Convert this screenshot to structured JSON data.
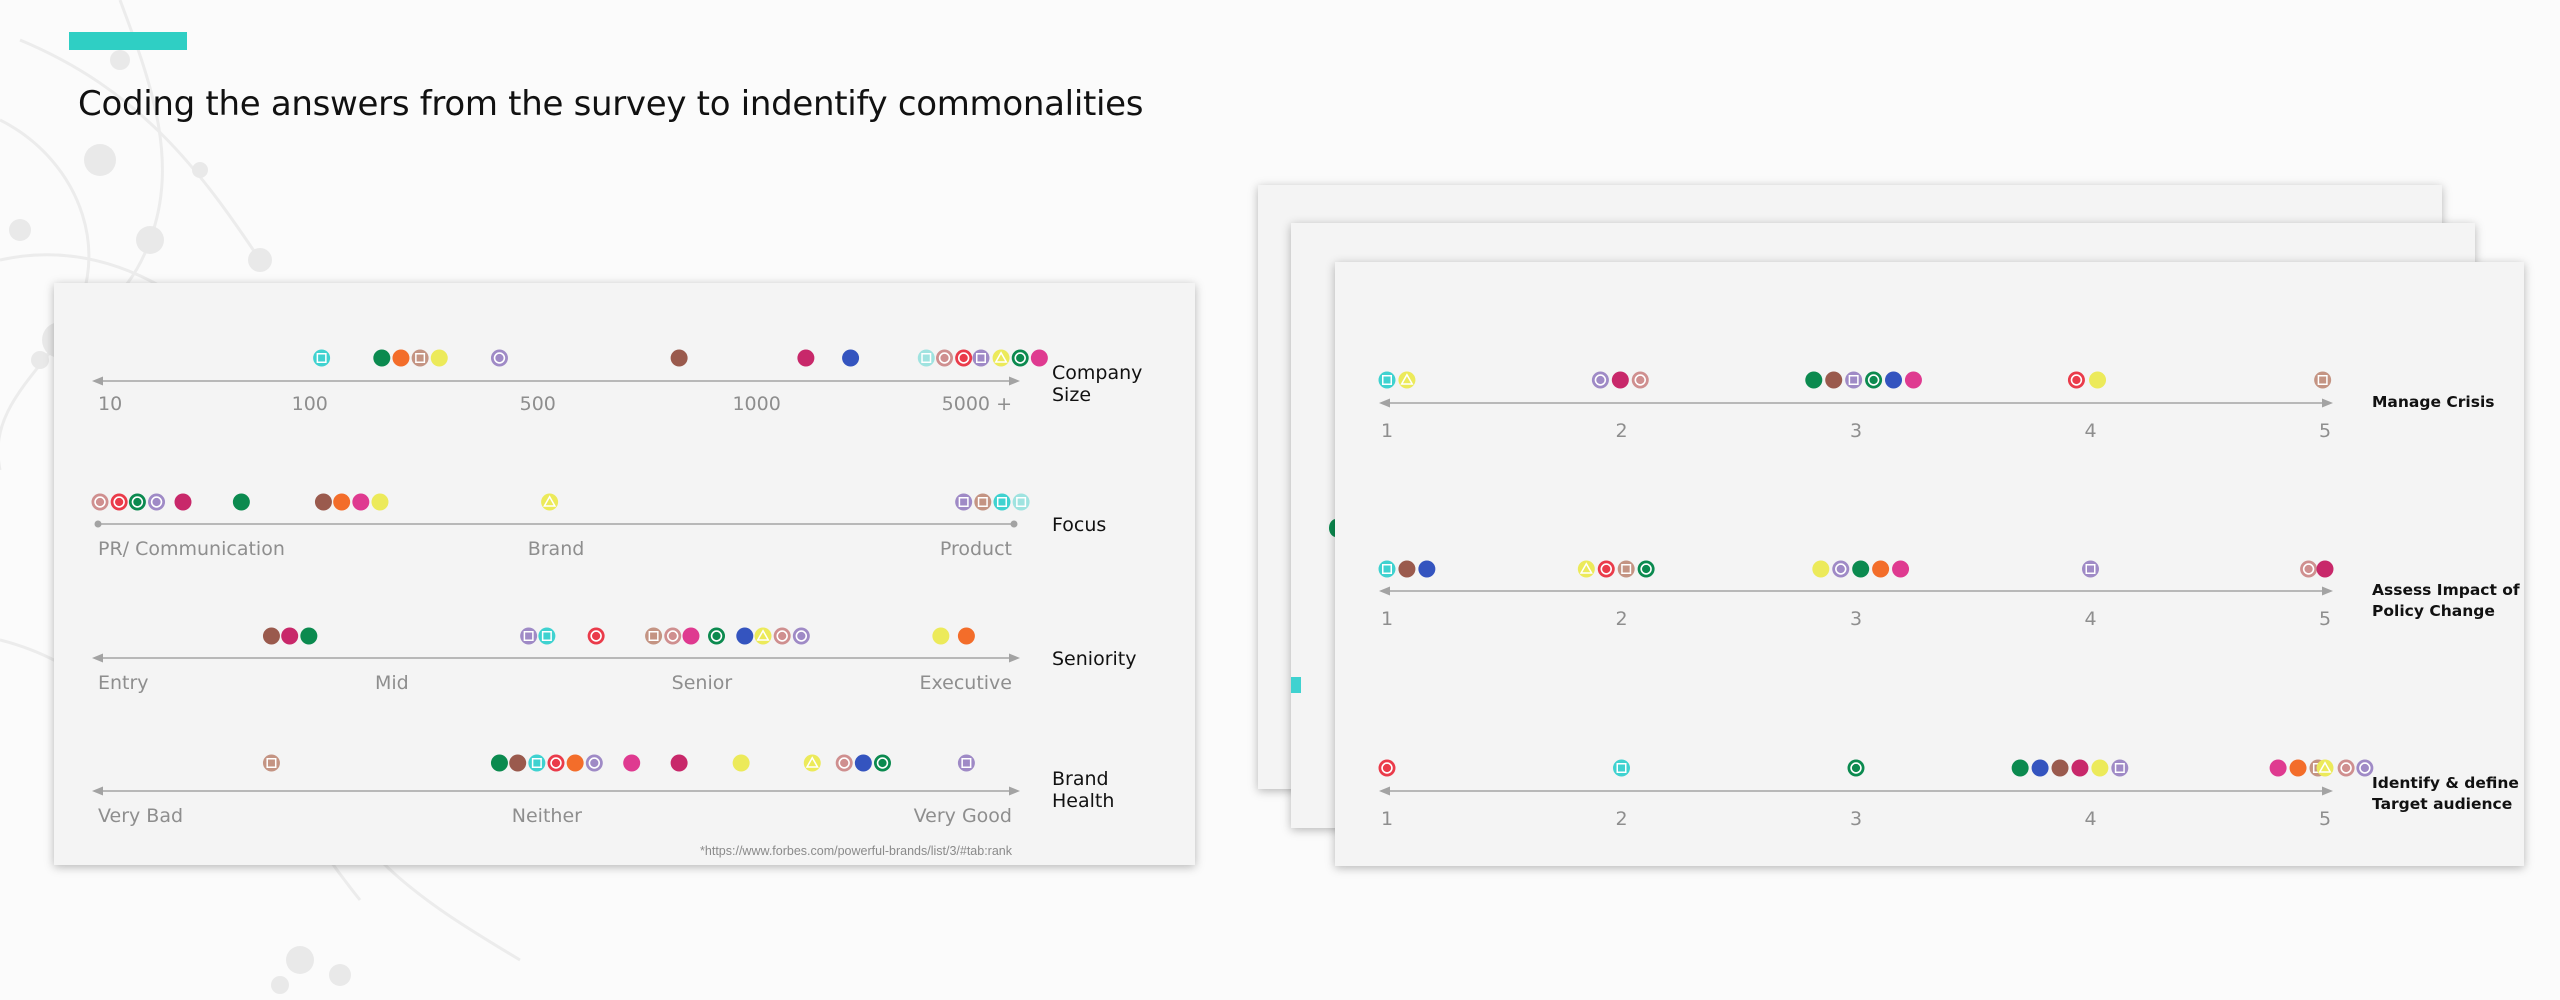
{
  "page": {
    "title": "Coding the answers from the survey to indentify commonalities"
  },
  "colors": {
    "accent": "#2fcfc4",
    "axis": "#a3a3a3",
    "tick_text": "#8e8e8e",
    "marker_palette": {
      "cyan": "#3fd2d0",
      "green": "#0b8a4f",
      "orange": "#f36d2a",
      "tan": "#c49483",
      "yellow": "#ecea5a",
      "lilac": "#9f8ac6",
      "brown": "#9a5a4d",
      "crimson": "#c8286a",
      "blue": "#3454bf",
      "salmon": "#cf8f8f",
      "red": "#ea3b4a",
      "pink": "#df3a90",
      "lightcyan": "#9fe3e0"
    }
  },
  "chart_data": [
    {
      "type": "scatter",
      "title": "",
      "source_note": "*https://www.forbes.com/powerful-brands/list/3/#tab:rank",
      "rows": [
        {
          "label": [
            "Company",
            "Size"
          ],
          "axis": "arrows",
          "xlim": [
            0,
            100
          ],
          "ticks": [
            {
              "x": 0,
              "label": "10"
            },
            {
              "x": 23,
              "label": "100"
            },
            {
              "x": 48,
              "label": "500"
            },
            {
              "x": 72,
              "label": "1000"
            },
            {
              "x": 96,
              "label": "5000 +"
            }
          ],
          "points": [
            {
              "x": 24.3,
              "color": "cyan",
              "shape": "square"
            },
            {
              "x": 30.9,
              "color": "green",
              "shape": "dot"
            },
            {
              "x": 33.0,
              "color": "orange",
              "shape": "dot"
            },
            {
              "x": 35.1,
              "color": "tan",
              "shape": "square"
            },
            {
              "x": 37.2,
              "color": "yellow",
              "shape": "dot"
            },
            {
              "x": 43.8,
              "color": "lilac",
              "shape": "ring"
            },
            {
              "x": 63.5,
              "color": "brown",
              "shape": "dot"
            },
            {
              "x": 77.4,
              "color": "crimson",
              "shape": "dot"
            },
            {
              "x": 82.3,
              "color": "blue",
              "shape": "dot"
            },
            {
              "x": 90.6,
              "color": "lightcyan",
              "shape": "square"
            },
            {
              "x": 92.6,
              "color": "salmon",
              "shape": "ring"
            },
            {
              "x": 94.7,
              "color": "red",
              "shape": "ring"
            },
            {
              "x": 96.6,
              "color": "lilac",
              "shape": "square"
            },
            {
              "x": 98.8,
              "color": "yellow",
              "shape": "triangle"
            },
            {
              "x": 100.9,
              "color": "green",
              "shape": "ring"
            },
            {
              "x": 103.0,
              "color": "pink",
              "shape": "dot"
            }
          ]
        },
        {
          "label": [
            "Focus"
          ],
          "axis": "dots",
          "xlim": [
            0,
            100
          ],
          "ticks": [
            {
              "x": 0,
              "label": "PR/ Communication"
            },
            {
              "x": 50,
              "label": "Brand"
            },
            {
              "x": 96,
              "label": "Product"
            }
          ],
          "points": [
            {
              "x": 0,
              "color": "salmon",
              "shape": "ring"
            },
            {
              "x": 2.1,
              "color": "red",
              "shape": "ring"
            },
            {
              "x": 4.1,
              "color": "green",
              "shape": "ring"
            },
            {
              "x": 6.2,
              "color": "lilac",
              "shape": "ring"
            },
            {
              "x": 9.1,
              "color": "crimson",
              "shape": "dot"
            },
            {
              "x": 15.5,
              "color": "green",
              "shape": "dot"
            },
            {
              "x": 24.5,
              "color": "brown",
              "shape": "dot"
            },
            {
              "x": 26.5,
              "color": "orange",
              "shape": "dot"
            },
            {
              "x": 28.6,
              "color": "pink",
              "shape": "dot"
            },
            {
              "x": 30.7,
              "color": "yellow",
              "shape": "dot"
            },
            {
              "x": 49.3,
              "color": "yellow",
              "shape": "triangle"
            },
            {
              "x": 94.7,
              "color": "lilac",
              "shape": "square"
            },
            {
              "x": 96.8,
              "color": "tan",
              "shape": "square"
            },
            {
              "x": 98.9,
              "color": "cyan",
              "shape": "square"
            },
            {
              "x": 101.0,
              "color": "lightcyan",
              "shape": "square"
            }
          ]
        },
        {
          "label": [
            "Seniority"
          ],
          "axis": "arrows",
          "xlim": [
            0,
            100
          ],
          "ticks": [
            {
              "x": 0,
              "label": "Entry"
            },
            {
              "x": 32,
              "label": "Mid"
            },
            {
              "x": 66,
              "label": "Senior"
            },
            {
              "x": 96,
              "label": "Executive"
            }
          ],
          "points": [
            {
              "x": 18.8,
              "color": "brown",
              "shape": "dot"
            },
            {
              "x": 20.8,
              "color": "crimson",
              "shape": "dot"
            },
            {
              "x": 22.9,
              "color": "green",
              "shape": "dot"
            },
            {
              "x": 47.0,
              "color": "lilac",
              "shape": "square"
            },
            {
              "x": 49.0,
              "color": "cyan",
              "shape": "square"
            },
            {
              "x": 54.4,
              "color": "red",
              "shape": "ring"
            },
            {
              "x": 60.7,
              "color": "tan",
              "shape": "square"
            },
            {
              "x": 62.8,
              "color": "salmon",
              "shape": "ring"
            },
            {
              "x": 64.8,
              "color": "pink",
              "shape": "dot"
            },
            {
              "x": 67.6,
              "color": "green",
              "shape": "ring"
            },
            {
              "x": 70.7,
              "color": "blue",
              "shape": "dot"
            },
            {
              "x": 72.7,
              "color": "yellow",
              "shape": "triangle"
            },
            {
              "x": 74.8,
              "color": "salmon",
              "shape": "ring"
            },
            {
              "x": 76.9,
              "color": "lilac",
              "shape": "ring"
            },
            {
              "x": 92.2,
              "color": "yellow",
              "shape": "dot"
            },
            {
              "x": 95.0,
              "color": "orange",
              "shape": "dot"
            }
          ]
        },
        {
          "label": [
            "Brand",
            "Health"
          ],
          "axis": "arrows",
          "xlim": [
            0,
            100
          ],
          "ticks": [
            {
              "x": 0,
              "label": "Very Bad"
            },
            {
              "x": 49,
              "label": "Neither"
            },
            {
              "x": 96,
              "label": "Very Good"
            }
          ],
          "points": [
            {
              "x": 18.8,
              "color": "tan",
              "shape": "square"
            },
            {
              "x": 43.8,
              "color": "green",
              "shape": "dot"
            },
            {
              "x": 45.8,
              "color": "brown",
              "shape": "dot"
            },
            {
              "x": 47.9,
              "color": "cyan",
              "shape": "square"
            },
            {
              "x": 50.0,
              "color": "red",
              "shape": "ring"
            },
            {
              "x": 52.1,
              "color": "orange",
              "shape": "dot"
            },
            {
              "x": 54.2,
              "color": "lilac",
              "shape": "ring"
            },
            {
              "x": 58.3,
              "color": "pink",
              "shape": "dot"
            },
            {
              "x": 63.5,
              "color": "crimson",
              "shape": "dot"
            },
            {
              "x": 70.3,
              "color": "yellow",
              "shape": "dot"
            },
            {
              "x": 78.1,
              "color": "yellow",
              "shape": "triangle"
            },
            {
              "x": 81.6,
              "color": "salmon",
              "shape": "ring"
            },
            {
              "x": 83.7,
              "color": "blue",
              "shape": "dot"
            },
            {
              "x": 85.8,
              "color": "green",
              "shape": "ring"
            },
            {
              "x": 95.0,
              "color": "lilac",
              "shape": "square"
            }
          ]
        }
      ]
    },
    {
      "type": "scatter",
      "title": "",
      "rows": [
        {
          "label": [
            "Manage Crisis"
          ],
          "axis": "arrows",
          "xlim": [
            1,
            5
          ],
          "ticks": [
            {
              "x": 1,
              "label": "1"
            },
            {
              "x": 2,
              "label": "2"
            },
            {
              "x": 3,
              "label": "3"
            },
            {
              "x": 4,
              "label": "4"
            },
            {
              "x": 5,
              "label": "5"
            }
          ],
          "points": [
            {
              "x": 1.0,
              "color": "cyan",
              "shape": "square"
            },
            {
              "x": 1.085,
              "color": "yellow",
              "shape": "triangle"
            },
            {
              "x": 1.91,
              "color": "lilac",
              "shape": "ring"
            },
            {
              "x": 1.995,
              "color": "crimson",
              "shape": "dot"
            },
            {
              "x": 2.08,
              "color": "salmon",
              "shape": "ring"
            },
            {
              "x": 2.82,
              "color": "green",
              "shape": "dot"
            },
            {
              "x": 2.905,
              "color": "brown",
              "shape": "dot"
            },
            {
              "x": 2.99,
              "color": "lilac",
              "shape": "square"
            },
            {
              "x": 3.075,
              "color": "green",
              "shape": "ring"
            },
            {
              "x": 3.16,
              "color": "blue",
              "shape": "dot"
            },
            {
              "x": 3.245,
              "color": "pink",
              "shape": "dot"
            },
            {
              "x": 3.94,
              "color": "red",
              "shape": "ring"
            },
            {
              "x": 4.03,
              "color": "yellow",
              "shape": "dot"
            },
            {
              "x": 4.99,
              "color": "tan",
              "shape": "square"
            }
          ]
        },
        {
          "label": [
            "Assess Impact of",
            "Policy Change"
          ],
          "axis": "arrows",
          "xlim": [
            1,
            5
          ],
          "ticks": [
            {
              "x": 1,
              "label": "1"
            },
            {
              "x": 2,
              "label": "2"
            },
            {
              "x": 3,
              "label": "3"
            },
            {
              "x": 4,
              "label": "4"
            },
            {
              "x": 5,
              "label": "5"
            }
          ],
          "points": [
            {
              "x": 1.0,
              "color": "cyan",
              "shape": "square"
            },
            {
              "x": 1.085,
              "color": "brown",
              "shape": "dot"
            },
            {
              "x": 1.17,
              "color": "blue",
              "shape": "dot"
            },
            {
              "x": 1.85,
              "color": "yellow",
              "shape": "triangle"
            },
            {
              "x": 1.935,
              "color": "red",
              "shape": "ring"
            },
            {
              "x": 2.02,
              "color": "tan",
              "shape": "square"
            },
            {
              "x": 2.105,
              "color": "green",
              "shape": "ring"
            },
            {
              "x": 2.85,
              "color": "yellow",
              "shape": "dot"
            },
            {
              "x": 2.935,
              "color": "lilac",
              "shape": "ring"
            },
            {
              "x": 3.02,
              "color": "green",
              "shape": "dot"
            },
            {
              "x": 3.105,
              "color": "orange",
              "shape": "dot"
            },
            {
              "x": 3.19,
              "color": "pink",
              "shape": "dot"
            },
            {
              "x": 4.0,
              "color": "lilac",
              "shape": "square"
            },
            {
              "x": 4.93,
              "color": "salmon",
              "shape": "ring"
            },
            {
              "x": 5.0,
              "color": "crimson",
              "shape": "dot"
            }
          ]
        },
        {
          "label": [
            "Identify & define",
            "Target audience"
          ],
          "axis": "arrows",
          "xlim": [
            1,
            5
          ],
          "ticks": [
            {
              "x": 1,
              "label": "1"
            },
            {
              "x": 2,
              "label": "2"
            },
            {
              "x": 3,
              "label": "3"
            },
            {
              "x": 4,
              "label": "4"
            },
            {
              "x": 5,
              "label": "5"
            }
          ],
          "points": [
            {
              "x": 1.0,
              "color": "red",
              "shape": "ring"
            },
            {
              "x": 2.0,
              "color": "cyan",
              "shape": "square"
            },
            {
              "x": 3.0,
              "color": "green",
              "shape": "ring"
            },
            {
              "x": 3.7,
              "color": "green",
              "shape": "dot"
            },
            {
              "x": 3.785,
              "color": "blue",
              "shape": "dot"
            },
            {
              "x": 3.87,
              "color": "brown",
              "shape": "dot"
            },
            {
              "x": 3.955,
              "color": "crimson",
              "shape": "dot"
            },
            {
              "x": 4.04,
              "color": "yellow",
              "shape": "dot"
            },
            {
              "x": 4.125,
              "color": "lilac",
              "shape": "square"
            },
            {
              "x": 4.8,
              "color": "pink",
              "shape": "dot"
            },
            {
              "x": 4.885,
              "color": "orange",
              "shape": "dot"
            },
            {
              "x": 4.97,
              "color": "tan",
              "shape": "square"
            },
            {
              "x": 5.0,
              "color": "yellow",
              "shape": "triangle"
            },
            {
              "x": 5.09,
              "color": "salmon",
              "shape": "ring"
            },
            {
              "x": 5.17,
              "color": "lilac",
              "shape": "ring"
            }
          ]
        }
      ]
    }
  ]
}
